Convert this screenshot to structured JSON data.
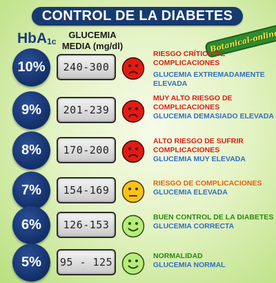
{
  "title": "CONTROL DE LA DIABETES",
  "headers": {
    "hba": "HbA",
    "hba_sub": "1c",
    "glucemia_line1": "GLUCEMIA",
    "glucemia_line2": "MEDIA (mg/dl)"
  },
  "logo": {
    "text": "Botanical-online"
  },
  "colors": {
    "title_bg": "#173a70",
    "circle": "#132f68",
    "red": "#d81f12",
    "orange": "#e4610b",
    "green": "#2b8a0e",
    "blue": "#2f6fc2"
  },
  "rows": [
    {
      "level": "10%",
      "range": "240-300",
      "face": "sad-red-face-icon",
      "risk": "RIESGO CRÍTICO DE COMPLICACIONES",
      "glucemia": "GLUCEMIA EXTREMADAMENTE ELEVADA"
    },
    {
      "level": "9%",
      "range": "201-239",
      "face": "sad-red-face-icon",
      "risk": "MUY ALTO RIESGO DE COMPLICACIONES",
      "glucemia": "GLUCEMIA DEMASIADO ELEVADA"
    },
    {
      "level": "8%",
      "range": "170-200",
      "face": "sad-red-face-icon",
      "risk": "ALTO RIESGO DE SUFRIR COMPLICACIONES",
      "glucemia": "GLUCEMIA MUY ELEVADA"
    },
    {
      "level": "7%",
      "range": "154-169",
      "face": "neutral-yellow-face-icon",
      "risk": "RIESGO DE COMPLICACIONES",
      "glucemia": "GLUCEMIA ELEVADA"
    },
    {
      "level": "6%",
      "range": "126-153",
      "face": "happy-green-face-icon",
      "risk": "BUEN CONTROL DE LA DIABETES",
      "glucemia": "GLUCEMIA CORRECTA"
    },
    {
      "level": "5%",
      "range": "95 - 125",
      "face": "happy-green-face-icon",
      "risk": "NORMALIDAD",
      "glucemia": "GLUCEMIA NORMAL"
    }
  ]
}
